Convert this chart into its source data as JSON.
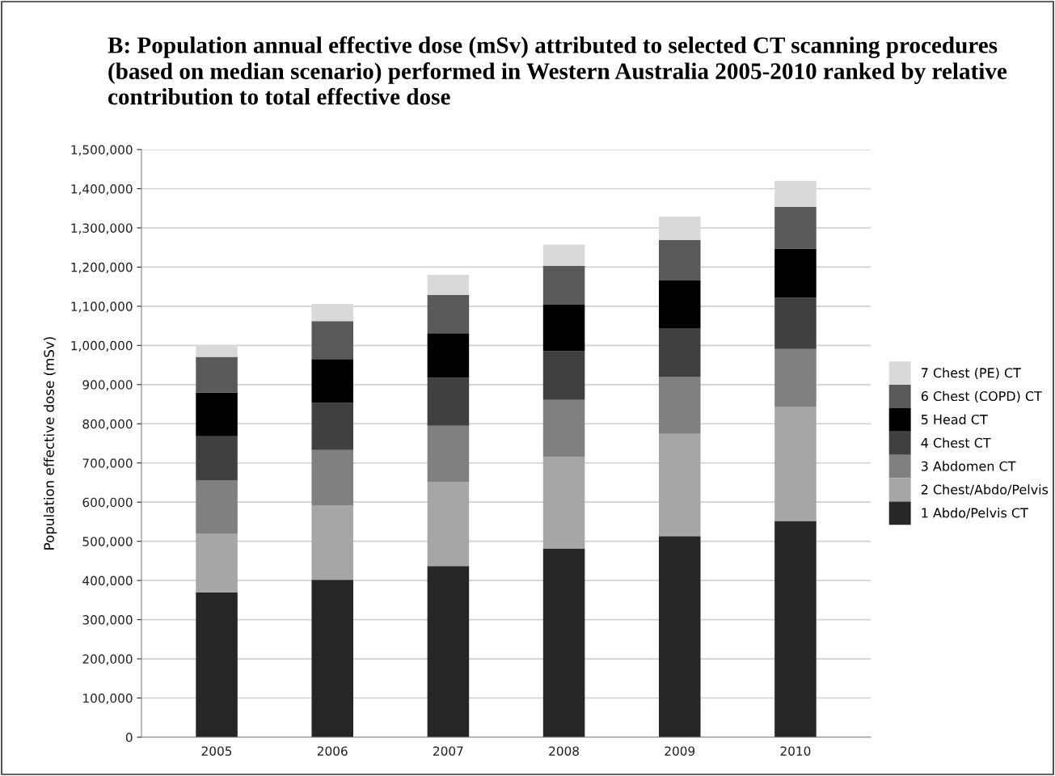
{
  "chart_data": {
    "type": "bar",
    "stacked": true,
    "title": "B: Population annual effective dose (mSv) attributed to selected CT scanning procedures (based on median scenario) performed in Western Australia 2005-2010 ranked by relative contribution to total effective dose",
    "ylabel": "Population effective dose (mSv)",
    "categories": [
      "2005",
      "2006",
      "2007",
      "2008",
      "2009",
      "2010"
    ],
    "series": [
      {
        "name": "1 Abdo/Pelvis CT",
        "color": "#262626",
        "values": [
          370000,
          402000,
          437000,
          482000,
          513000,
          552000
        ]
      },
      {
        "name": "2 Chest/Abdo/Pelvis",
        "color": "#a6a6a6",
        "values": [
          149000,
          190000,
          215000,
          233000,
          261000,
          292000
        ]
      },
      {
        "name": "3 Abdomen CT",
        "color": "#808080",
        "values": [
          136000,
          141000,
          143000,
          146000,
          145000,
          147000
        ]
      },
      {
        "name": "4 Chest CT",
        "color": "#404040",
        "values": [
          113000,
          120000,
          122000,
          124000,
          125000,
          131000
        ]
      },
      {
        "name": "5 Head CT",
        "color": "#000000",
        "values": [
          112000,
          112000,
          114000,
          119000,
          122000,
          125000
        ]
      },
      {
        "name": "6 Chest (COPD) CT",
        "color": "#595959",
        "values": [
          91000,
          97000,
          98000,
          99000,
          103000,
          107000
        ]
      },
      {
        "name": "7 Chest (PE) CT",
        "color": "#d9d9d9",
        "values": [
          30000,
          44000,
          51000,
          54000,
          60000,
          66000
        ]
      }
    ],
    "ylim": [
      0,
      1500000
    ],
    "yticks": [
      {
        "value": 0,
        "label": "0"
      },
      {
        "value": 100000,
        "label": "100,000"
      },
      {
        "value": 200000,
        "label": "200,000"
      },
      {
        "value": 300000,
        "label": "300,000"
      },
      {
        "value": 400000,
        "label": "400,000"
      },
      {
        "value": 500000,
        "label": "500,000"
      },
      {
        "value": 600000,
        "label": "600,000"
      },
      {
        "value": 700000,
        "label": "700,000"
      },
      {
        "value": 800000,
        "label": "800,000"
      },
      {
        "value": 900000,
        "label": "900,000"
      },
      {
        "value": 1000000,
        "label": "1,000,000"
      },
      {
        "value": 1100000,
        "label": "1,100,000"
      },
      {
        "value": 1200000,
        "label": "1,200,000"
      },
      {
        "value": 1300000,
        "label": "1,300,000"
      },
      {
        "value": 1400000,
        "label": "1,400,000"
      },
      {
        "value": 1500000,
        "label": "1,500,000"
      }
    ],
    "grid": "y",
    "legend": "right"
  }
}
